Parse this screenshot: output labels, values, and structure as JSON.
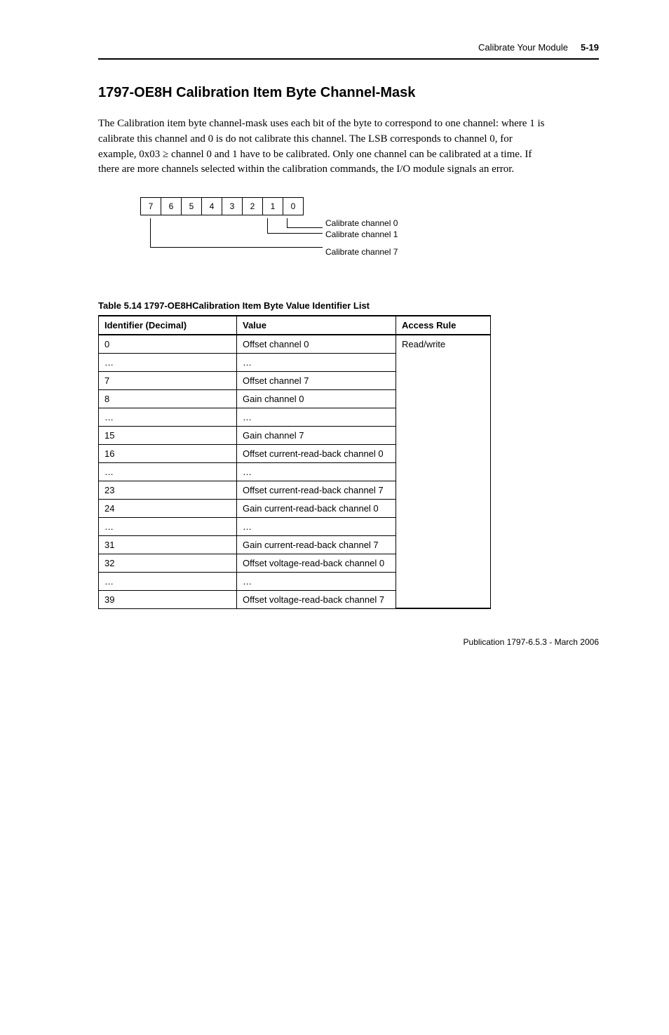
{
  "running_head": {
    "title": "Calibrate Your Module",
    "page_number": "5-19"
  },
  "section": {
    "heading": "1797-OE8H Calibration Item Byte Channel-Mask",
    "body": "The Calibration item byte channel-mask uses each bit of the byte to correspond to one channel: where 1 is calibrate this channel and 0 is do not calibrate this channel. The LSB corresponds to channel 0, for example, 0x03 ≥ channel 0 and 1 have to be calibrated. Only one channel can be calibrated at a time. If there are more channels selected within the calibration commands, the I/O module signals an error."
  },
  "bit_diagram": {
    "bits": [
      "7",
      "6",
      "5",
      "4",
      "3",
      "2",
      "1",
      "0"
    ],
    "labels": {
      "ch0": "Calibrate channel 0",
      "ch1": "Calibrate channel 1",
      "ch7": "Calibrate channel 7"
    }
  },
  "table": {
    "caption": "Table 5.14 1797-OE8HCalibration Item Byte Value Identifier List",
    "headers": {
      "id": "Identifier (Decimal)",
      "value": "Value",
      "access": "Access Rule"
    },
    "access_value": "Read/write",
    "rows": [
      {
        "id": "0",
        "value": "Offset channel 0"
      },
      {
        "id": "…",
        "value": "…"
      },
      {
        "id": "7",
        "value": "Offset channel 7"
      },
      {
        "id": "8",
        "value": "Gain channel 0"
      },
      {
        "id": "…",
        "value": "…"
      },
      {
        "id": "15",
        "value": "Gain channel 7"
      },
      {
        "id": "16",
        "value": "Offset current-read-back channel 0"
      },
      {
        "id": "…",
        "value": "…"
      },
      {
        "id": "23",
        "value": "Offset current-read-back channel 7"
      },
      {
        "id": "24",
        "value": "Gain current-read-back channel 0"
      },
      {
        "id": "…",
        "value": "…"
      },
      {
        "id": "31",
        "value": "Gain current-read-back channel 7"
      },
      {
        "id": "32",
        "value": "Offset voltage-read-back channel 0"
      },
      {
        "id": "…",
        "value": "…"
      },
      {
        "id": "39",
        "value": "Offset voltage-read-back channel 7"
      }
    ]
  },
  "footer": {
    "text": "Publication 1797-6.5.3 - March 2006"
  }
}
